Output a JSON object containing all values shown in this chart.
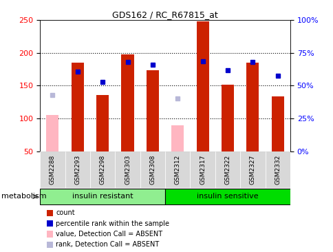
{
  "title": "GDS162 / RC_R67815_at",
  "samples": [
    "GSM2288",
    "GSM2293",
    "GSM2298",
    "GSM2303",
    "GSM2308",
    "GSM2312",
    "GSM2317",
    "GSM2322",
    "GSM2327",
    "GSM2332"
  ],
  "groups": [
    {
      "label": "insulin resistant",
      "start": 0,
      "end": 5,
      "color": "#90EE90"
    },
    {
      "label": "insulin sensitive",
      "start": 5,
      "end": 10,
      "color": "#00DD00"
    }
  ],
  "red_bars": [
    null,
    185,
    136,
    198,
    174,
    null,
    248,
    152,
    185,
    134
  ],
  "pink_bars": [
    105,
    null,
    null,
    null,
    null,
    90,
    null,
    null,
    null,
    null
  ],
  "blue_squares": [
    null,
    172,
    156,
    186,
    182,
    null,
    187,
    174,
    186,
    165
  ],
  "lavender_squares": [
    136,
    null,
    null,
    null,
    null,
    130,
    null,
    null,
    null,
    null
  ],
  "ymin": 50,
  "ymax": 250,
  "yticks_left": [
    50,
    100,
    150,
    200,
    250
  ],
  "grid_lines": [
    100,
    150,
    200
  ],
  "legend_items": [
    {
      "color": "#cc2200",
      "label": "count"
    },
    {
      "color": "#0000cc",
      "label": "percentile rank within the sample"
    },
    {
      "color": "#ffb6c1",
      "label": "value, Detection Call = ABSENT"
    },
    {
      "color": "#b8b8d8",
      "label": "rank, Detection Call = ABSENT"
    }
  ],
  "bar_width": 0.5,
  "sq_size": 5,
  "left_tick_color": "red",
  "right_tick_color": "blue",
  "right_tick_labels": [
    "0%",
    "25%",
    "50%",
    "75%",
    "100%"
  ]
}
